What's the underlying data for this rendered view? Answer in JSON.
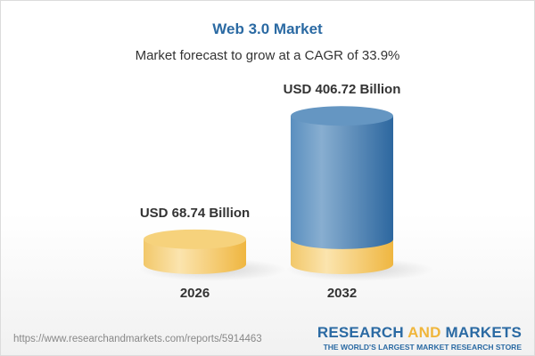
{
  "chart_data": {
    "type": "bar",
    "title": "Web 3.0 Market",
    "subtitle": "Market forecast to grow at a CAGR of 33.9%",
    "categories": [
      "2026",
      "2032"
    ],
    "values": [
      68.74,
      406.72
    ],
    "value_labels": [
      "USD 68.74 Billion",
      "USD 406.72 Billion"
    ],
    "unit": "USD Billion",
    "colors": {
      "base": "#f2c35a",
      "growth": "#3f79ad"
    }
  },
  "footer": {
    "url": "https://www.researchandmarkets.com/reports/5914463",
    "logo_part1": "RESEARCH ",
    "logo_part2": "AND",
    "logo_part3": " MARKETS",
    "tagline": "THE WORLD'S LARGEST MARKET RESEARCH STORE"
  }
}
